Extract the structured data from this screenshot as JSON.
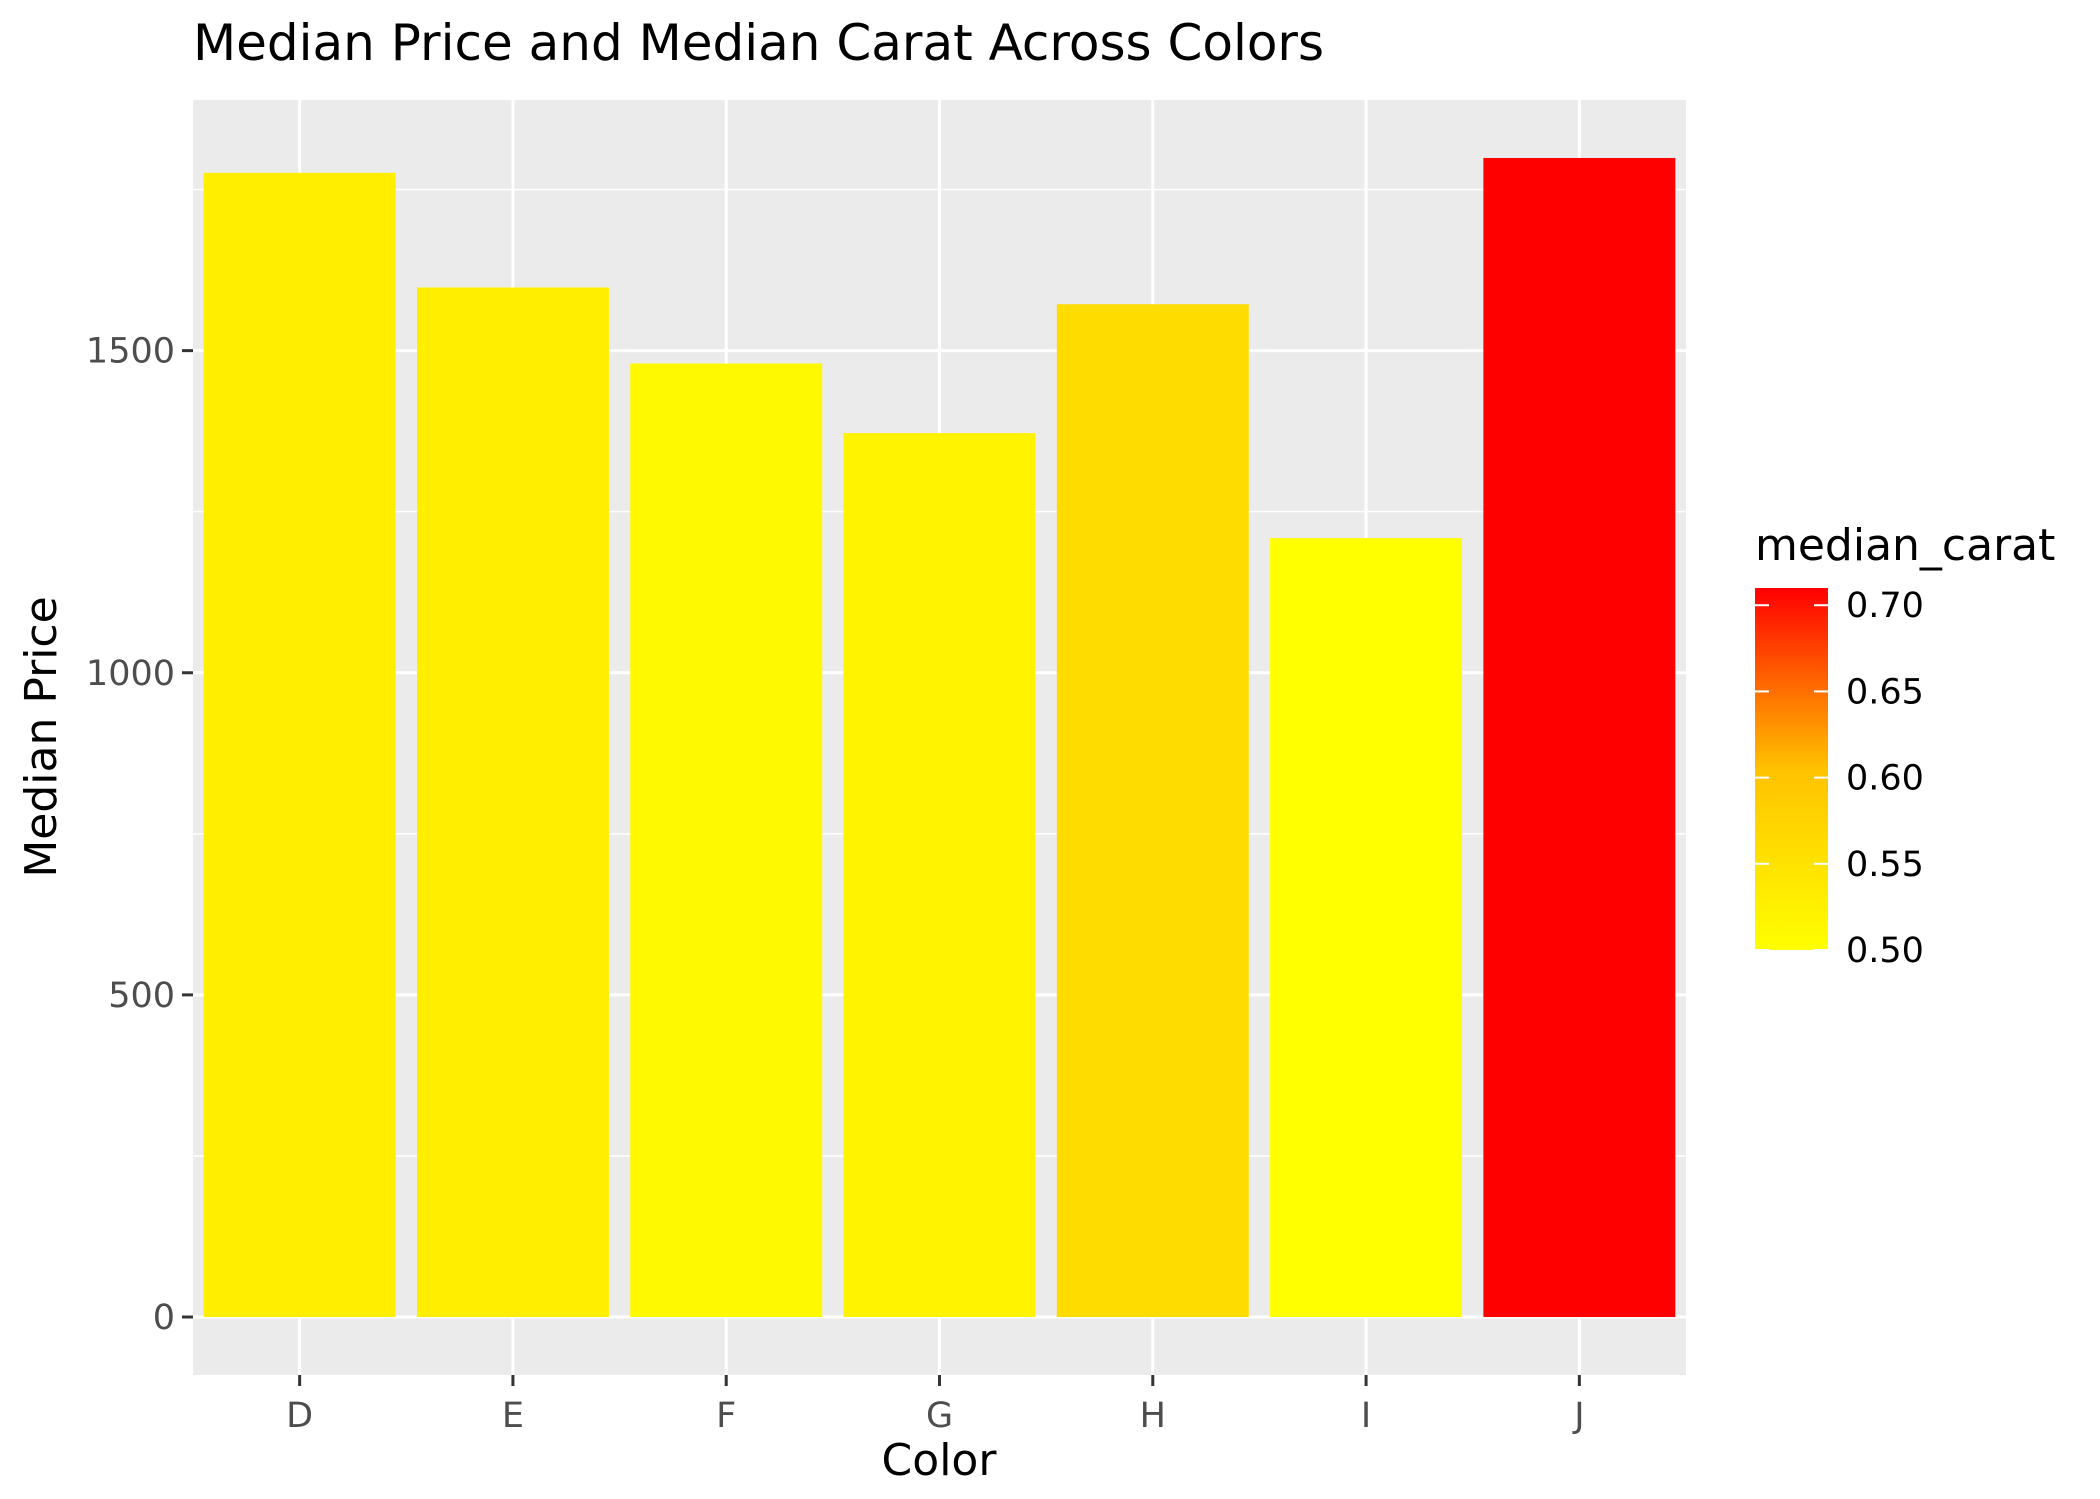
{
  "chart_data": {
    "type": "bar",
    "title": "Median Price and Median Carat Across Colors",
    "xlabel": "Color",
    "ylabel": "Median Price",
    "categories": [
      "D",
      "E",
      "F",
      "G",
      "H",
      "I",
      "J"
    ],
    "values": [
      1776,
      1598,
      1480,
      1372,
      1572,
      1209,
      1799
    ],
    "fill_variable": {
      "name": "median_carat",
      "values": [
        0.53,
        0.53,
        0.51,
        0.52,
        0.56,
        0.5,
        0.71
      ],
      "range": [
        0.5,
        0.71
      ],
      "low_color": "#ffff00",
      "high_color": "#ff0000",
      "ticks": [
        0.5,
        0.55,
        0.6,
        0.65,
        0.7
      ],
      "tick_labels": [
        "0.50",
        "0.55",
        "0.60",
        "0.65",
        "0.70"
      ]
    },
    "ylim": [
      -90,
      1889
    ],
    "yticks": [
      0,
      500,
      1000,
      1500
    ],
    "ytick_labels": [
      "0",
      "500",
      "1000",
      "1500"
    ],
    "grid": true,
    "legend_position": "right",
    "panel_background": "#ebebeb",
    "grid_color": "#ffffff"
  }
}
